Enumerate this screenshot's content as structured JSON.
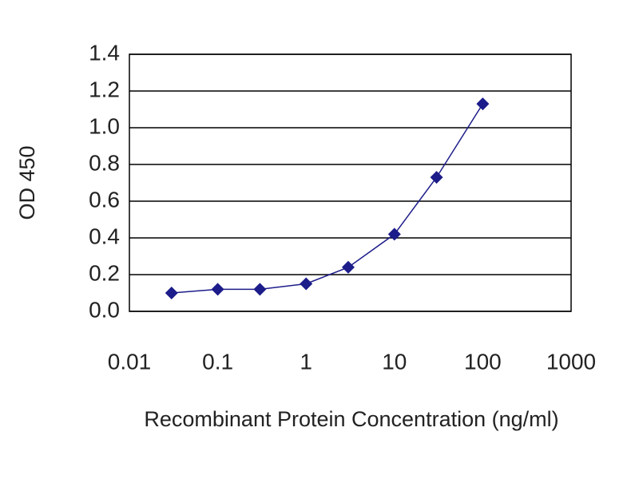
{
  "chart_data": {
    "type": "line",
    "xscale": "log",
    "x_label": "Recombinant Protein Concentration (ng/ml)",
    "y_label": "OD 450",
    "x": [
      0.03,
      0.1,
      0.3,
      1,
      3,
      10,
      30,
      100
    ],
    "series": [
      {
        "color": "#1c1c8a",
        "values": [
          0.1,
          0.12,
          0.12,
          0.15,
          0.24,
          0.42,
          0.73,
          1.13
        ]
      }
    ],
    "xlim": [
      0.01,
      1000
    ],
    "xticks": [
      0.01,
      0.1,
      1,
      10,
      100,
      1000
    ],
    "ylim": [
      0,
      1.4
    ],
    "yticks": [
      {
        "value": 0,
        "label": "0.0"
      },
      0.2,
      0.4,
      0.6,
      0.8,
      {
        "value": 1,
        "label": "1.0"
      },
      1.2,
      1.4
    ],
    "grid": true
  }
}
